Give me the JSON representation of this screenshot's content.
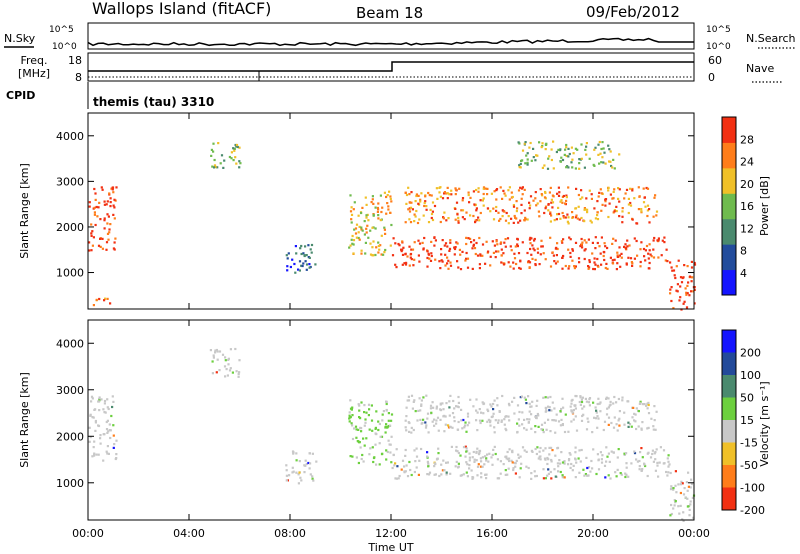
{
  "header": {
    "station": "Wallops Island (fitACF)",
    "beam": "Beam 18",
    "date": "09/Feb/2012"
  },
  "noise_panel": {
    "left_label": "N.Sky",
    "right_label": "N.Search",
    "tick_top": "10^5",
    "tick_bottom": "10^0"
  },
  "freq_panel": {
    "left_label_line1": "Freq.",
    "left_label_line2": "[MHz]",
    "right_label": "Nave",
    "left_ticks": [
      "18",
      "8"
    ],
    "right_ticks": [
      "60",
      "0"
    ]
  },
  "cpid_panel": {
    "label": "CPID",
    "program": "themis (tau) 3310"
  },
  "time_axis": {
    "label": "Time UT",
    "ticks": [
      "00:00",
      "04:00",
      "08:00",
      "12:00",
      "16:00",
      "20:00",
      "00:00"
    ]
  },
  "chart_data": [
    {
      "type": "heatmap",
      "parameter": "power",
      "ylabel": "Slant Range [km]",
      "y_ticks": [
        1000,
        2000,
        3000,
        4000
      ],
      "ylim": [
        200,
        4500
      ],
      "xlim_hours": [
        0,
        24
      ],
      "colorbar_label": "Power [dB]",
      "colorbar_ticks": [
        4,
        8,
        12,
        16,
        20,
        24,
        28
      ],
      "colorbar_range": [
        0,
        32
      ],
      "colors": [
        "#1515ff",
        "#224c9c",
        "#4a8a6e",
        "#6fbb4e",
        "#f0c028",
        "#ff7d1a",
        "#f23012"
      ],
      "regions": [
        {
          "t": [
            0.0,
            1.1
          ],
          "r": [
            1500,
            2900
          ],
          "level": 6
        },
        {
          "t": [
            0.1,
            1.0
          ],
          "r": [
            300,
            500
          ],
          "level": 5
        },
        {
          "t": [
            4.8,
            6.0
          ],
          "r": [
            3300,
            3900
          ],
          "level": 3
        },
        {
          "t": [
            7.8,
            9.0
          ],
          "r": [
            1000,
            1700
          ],
          "level": 1
        },
        {
          "t": [
            10.3,
            12.0
          ],
          "r": [
            1400,
            2800
          ],
          "level": 4
        },
        {
          "t": [
            12.0,
            23.0
          ],
          "r": [
            1100,
            1800
          ],
          "level": 6
        },
        {
          "t": [
            12.5,
            22.5
          ],
          "r": [
            2100,
            2900
          ],
          "level": 5
        },
        {
          "t": [
            17.0,
            21.0
          ],
          "r": [
            3300,
            3900
          ],
          "level": 3
        },
        {
          "t": [
            23.0,
            24.0
          ],
          "r": [
            200,
            1300
          ],
          "level": 6
        }
      ]
    },
    {
      "type": "heatmap",
      "parameter": "velocity",
      "ylabel": "Slant Range [km]",
      "y_ticks": [
        1000,
        2000,
        3000,
        4000
      ],
      "ylim": [
        200,
        4500
      ],
      "xlim_hours": [
        0,
        24
      ],
      "colorbar_label": "Velocity [m s⁻¹]",
      "colorbar_ticks": [
        200,
        100,
        50,
        15,
        -15,
        -50,
        -100,
        -200
      ],
      "colors": [
        "#1515ff",
        "#234a9a",
        "#4a8a6e",
        "#6ccf3e",
        "#c8c8c8",
        "#f0c028",
        "#ff7d1a",
        "#f23012"
      ],
      "regions": [
        {
          "t": [
            0.0,
            1.1
          ],
          "r": [
            1500,
            2900
          ],
          "category": "ground"
        },
        {
          "t": [
            4.8,
            6.0
          ],
          "r": [
            3300,
            3900
          ],
          "category": "ground"
        },
        {
          "t": [
            7.8,
            9.0
          ],
          "r": [
            1000,
            1700
          ],
          "category": "ground"
        },
        {
          "t": [
            10.3,
            12.0
          ],
          "r": [
            1400,
            2800
          ],
          "category": "low positive"
        },
        {
          "t": [
            12.0,
            23.0
          ],
          "r": [
            1100,
            1800
          ],
          "category": "ground"
        },
        {
          "t": [
            12.5,
            22.5
          ],
          "r": [
            2100,
            2900
          ],
          "category": "ground"
        },
        {
          "t": [
            23.0,
            24.0
          ],
          "r": [
            200,
            1300
          ],
          "category": "ground"
        }
      ]
    }
  ]
}
